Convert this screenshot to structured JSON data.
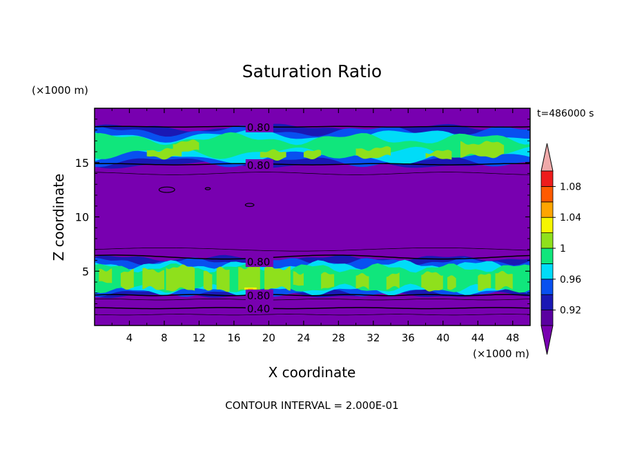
{
  "chart_data": {
    "type": "heatmap",
    "title": "Saturation Ratio",
    "xlabel": "X coordinate",
    "ylabel": "Z coordinate",
    "x_unit": "(×1000 m)",
    "y_unit": "(×1000 m)",
    "time_label": "t=486000 s",
    "footer": "CONTOUR INTERVAL = 2.000E-01",
    "xlim": [
      0,
      50
    ],
    "ylim": [
      0,
      20
    ],
    "x_ticks": [
      "4",
      "8",
      "12",
      "16",
      "20",
      "24",
      "28",
      "32",
      "36",
      "40",
      "44",
      "48"
    ],
    "y_ticks": [
      "5",
      "10",
      "15"
    ],
    "colorbar": {
      "levels": [
        0.9,
        0.92,
        0.94,
        0.96,
        0.98,
        1.0,
        1.02,
        1.04,
        1.06,
        1.08,
        1.1
      ],
      "tick_labels": [
        "0.92",
        "0.96",
        "1",
        "1.04",
        "1.08"
      ],
      "colors": [
        "#5a00a0",
        "#1a18b4",
        "#0850f0",
        "#00dcf8",
        "#10e67c",
        "#8fe01c",
        "#f6f600",
        "#ffa500",
        "#ff5a00",
        "#ee1c1c"
      ],
      "under_color": "#7800b0",
      "over_color": "#f0aaaa"
    },
    "contour_labels": [
      {
        "text": "0.80",
        "x": 17.5,
        "y": 18.3
      },
      {
        "text": "0.80",
        "x": 17.5,
        "y": 14.8
      },
      {
        "text": "0.80",
        "x": 17.5,
        "y": 5.9
      },
      {
        "text": "0.80",
        "x": 17.5,
        "y": 2.8
      },
      {
        "text": "0.40",
        "x": 17.5,
        "y": 1.6
      }
    ],
    "bands": [
      {
        "name": "upper-cloud-band",
        "z_range": [
          14.8,
          18.2
        ]
      },
      {
        "name": "lower-cloud-band",
        "z_range": [
          2.8,
          6.2
        ]
      }
    ]
  }
}
